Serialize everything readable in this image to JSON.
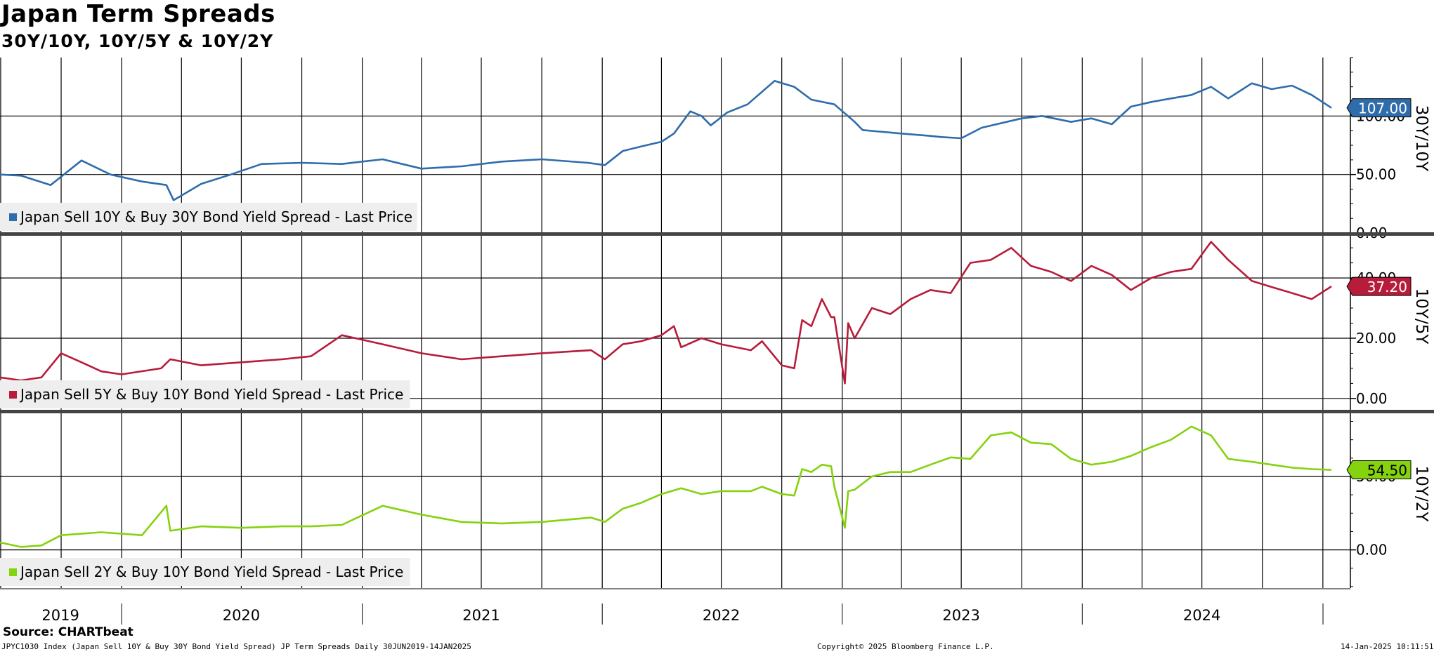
{
  "header": {
    "title": "Japan Term Spreads",
    "subtitle": "30Y/10Y, 10Y/5Y & 10Y/2Y"
  },
  "footer": {
    "source": "Source: CHARTbeat",
    "description": "JPYC1030 Index (Japan Sell 10Y & Buy 30Y Bond Yield Spread) JP Term Spreads  Daily 30JUN2019-14JAN2025",
    "copyright": "Copyright© 2025 Bloomberg Finance L.P.",
    "timestamp": "14-Jan-2025 10:11:51"
  },
  "chart_data": [
    {
      "type": "line",
      "axis_label": "30Y/10Y",
      "legend": "Japan Sell 10Y & Buy 30Y Bond Yield Spread - Last Price",
      "legend_position": "bottom-left",
      "color": "#2F6CAB",
      "last_value": "107.00",
      "ylim": [
        0,
        150
      ],
      "yticks": [
        {
          "v": 0,
          "label": "0.00"
        },
        {
          "v": 50,
          "label": "50.00"
        },
        {
          "v": 100,
          "label": "100.00"
        }
      ],
      "x": [
        "2019-06-30",
        "2019-08-01",
        "2019-09-15",
        "2019-11-01",
        "2019-12-15",
        "2020-02-01",
        "2020-03-09",
        "2020-03-20",
        "2020-05-01",
        "2020-06-15",
        "2020-08-01",
        "2020-10-01",
        "2020-12-01",
        "2021-02-01",
        "2021-04-01",
        "2021-06-01",
        "2021-08-01",
        "2021-10-01",
        "2021-12-10",
        "2022-01-05",
        "2022-02-01",
        "2022-03-01",
        "2022-04-01",
        "2022-04-20",
        "2022-05-15",
        "2022-06-01",
        "2022-06-15",
        "2022-07-10",
        "2022-08-10",
        "2022-09-20",
        "2022-10-20",
        "2022-11-15",
        "2022-12-20",
        "2023-01-20",
        "2023-02-01",
        "2023-02-20",
        "2023-04-01",
        "2023-05-15",
        "2023-06-01",
        "2023-07-01",
        "2023-08-01",
        "2023-10-01",
        "2023-11-01",
        "2023-12-15",
        "2024-01-15",
        "2024-02-15",
        "2024-03-15",
        "2024-04-15",
        "2024-05-15",
        "2024-06-15",
        "2024-07-15",
        "2024-08-10",
        "2024-09-15",
        "2024-10-15",
        "2024-11-15",
        "2024-12-15",
        "2025-01-14"
      ],
      "y": [
        50,
        49,
        41,
        62,
        50,
        44,
        41,
        28,
        42,
        50,
        59,
        60,
        59,
        63,
        55,
        57,
        61,
        63,
        60,
        58,
        70,
        74,
        78,
        85,
        104,
        100,
        92,
        103,
        110,
        130,
        125,
        114,
        110,
        95,
        88,
        87,
        85,
        83,
        82,
        81,
        90,
        98,
        100,
        95,
        98,
        93,
        108,
        112,
        115,
        118,
        125,
        115,
        128,
        123,
        126,
        118,
        107
      ]
    },
    {
      "type": "line",
      "axis_label": "10Y/5Y",
      "legend": "Japan Sell 5Y & Buy 10Y Bond Yield Spread - Last Price",
      "legend_position": "bottom-left",
      "color": "#B71C3A",
      "last_value": "37.20",
      "ylim": [
        -4,
        54
      ],
      "yticks": [
        {
          "v": 0,
          "label": "0.00"
        },
        {
          "v": 20,
          "label": "20.00"
        },
        {
          "v": 40,
          "label": "40.00"
        }
      ],
      "x": [
        "2019-06-30",
        "2019-08-01",
        "2019-09-01",
        "2019-10-01",
        "2019-11-01",
        "2019-12-01",
        "2020-01-01",
        "2020-03-01",
        "2020-03-15",
        "2020-05-01",
        "2020-07-01",
        "2020-09-01",
        "2020-10-15",
        "2020-12-01",
        "2021-02-01",
        "2021-04-01",
        "2021-06-01",
        "2021-08-01",
        "2021-10-01",
        "2021-12-15",
        "2022-01-05",
        "2022-02-01",
        "2022-03-01",
        "2022-04-01",
        "2022-04-20",
        "2022-05-01",
        "2022-06-01",
        "2022-07-01",
        "2022-08-15",
        "2022-09-01",
        "2022-10-01",
        "2022-10-20",
        "2022-11-01",
        "2022-11-15",
        "2022-12-01",
        "2022-12-15",
        "2022-12-20",
        "2023-01-05",
        "2023-01-10",
        "2023-01-20",
        "2023-02-15",
        "2023-03-15",
        "2023-04-15",
        "2023-05-15",
        "2023-06-15",
        "2023-07-15",
        "2023-08-15",
        "2023-09-15",
        "2023-10-15",
        "2023-11-15",
        "2023-12-15",
        "2024-01-15",
        "2024-02-15",
        "2024-03-15",
        "2024-04-15",
        "2024-05-15",
        "2024-06-15",
        "2024-07-15",
        "2024-08-10",
        "2024-09-15",
        "2024-10-15",
        "2024-11-15",
        "2024-12-15",
        "2025-01-14"
      ],
      "y": [
        7,
        6,
        7,
        15,
        12,
        9,
        8,
        10,
        13,
        11,
        12,
        13,
        14,
        21,
        18,
        15,
        13,
        14,
        15,
        16,
        13,
        18,
        19,
        21,
        24,
        17,
        20,
        18,
        16,
        19,
        11,
        10,
        26,
        24,
        33,
        27,
        27,
        5,
        25,
        20,
        30,
        28,
        33,
        36,
        35,
        45,
        46,
        50,
        44,
        42,
        39,
        44,
        41,
        36,
        40,
        42,
        43,
        52,
        46,
        39,
        37,
        35,
        33,
        37.2
      ]
    },
    {
      "type": "line",
      "axis_label": "10Y/2Y",
      "legend": "Japan Sell 2Y & Buy 10Y Bond Yield Spread - Last Price",
      "legend_position": "bottom-left",
      "color": "#85D20E",
      "last_value": "54.50",
      "ylim": [
        -26,
        93
      ],
      "yticks": [
        {
          "v": 0,
          "label": "0.00"
        },
        {
          "v": 50,
          "label": "50.00"
        }
      ],
      "x": [
        "2019-06-30",
        "2019-08-01",
        "2019-09-01",
        "2019-10-01",
        "2019-12-01",
        "2020-02-01",
        "2020-03-09",
        "2020-03-15",
        "2020-05-01",
        "2020-07-01",
        "2020-09-01",
        "2020-10-15",
        "2020-12-01",
        "2021-02-01",
        "2021-04-01",
        "2021-06-01",
        "2021-08-01",
        "2021-10-01",
        "2021-12-15",
        "2022-01-05",
        "2022-02-01",
        "2022-03-01",
        "2022-04-01",
        "2022-05-01",
        "2022-06-01",
        "2022-07-01",
        "2022-08-15",
        "2022-09-01",
        "2022-10-01",
        "2022-10-20",
        "2022-11-01",
        "2022-11-15",
        "2022-12-01",
        "2022-12-15",
        "2022-12-20",
        "2023-01-05",
        "2023-01-10",
        "2023-01-20",
        "2023-02-15",
        "2023-03-15",
        "2023-04-15",
        "2023-05-15",
        "2023-06-15",
        "2023-07-15",
        "2023-08-15",
        "2023-09-15",
        "2023-10-15",
        "2023-11-15",
        "2023-12-15",
        "2024-01-15",
        "2024-02-15",
        "2024-03-15",
        "2024-04-15",
        "2024-05-15",
        "2024-06-15",
        "2024-07-15",
        "2024-08-10",
        "2024-09-15",
        "2024-10-15",
        "2024-11-15",
        "2024-12-15",
        "2025-01-14"
      ],
      "y": [
        5,
        2,
        3,
        10,
        12,
        10,
        30,
        13,
        16,
        15,
        16,
        16,
        17,
        30,
        24,
        19,
        18,
        19,
        22,
        19,
        28,
        32,
        38,
        42,
        38,
        40,
        40,
        43,
        38,
        37,
        55,
        53,
        58,
        57,
        43,
        15,
        40,
        41,
        50,
        53,
        53,
        58,
        63,
        62,
        78,
        80,
        73,
        72,
        62,
        58,
        60,
        64,
        70,
        75,
        84,
        78,
        62,
        60,
        58,
        56,
        55,
        54.5
      ]
    }
  ],
  "x_axis": {
    "start": "2019-06-30",
    "end": "2025-01-14",
    "years": [
      {
        "label": "2019",
        "mid": "2019-09-30",
        "start": "2019-06-30"
      },
      {
        "label": "2020",
        "mid": "2020-07-01",
        "start": "2020-01-01"
      },
      {
        "label": "2021",
        "mid": "2021-07-01",
        "start": "2021-01-01"
      },
      {
        "label": "2022",
        "mid": "2022-07-01",
        "start": "2022-01-01"
      },
      {
        "label": "2023",
        "mid": "2023-07-01",
        "start": "2023-01-01"
      },
      {
        "label": "2024",
        "mid": "2024-07-01",
        "start": "2024-01-01"
      }
    ]
  }
}
